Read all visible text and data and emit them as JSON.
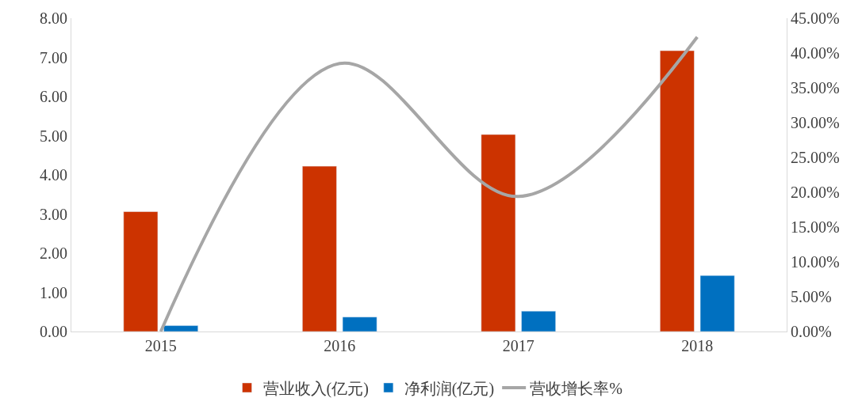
{
  "chart_data": {
    "type": "bar",
    "categories": [
      "2015",
      "2016",
      "2017",
      "2018"
    ],
    "series": [
      {
        "name": "营业收入(亿元)",
        "color": "#cc3300",
        "values": [
          3.06,
          4.22,
          5.03,
          7.17
        ]
      },
      {
        "name": "净利润(亿元)",
        "color": "#0070c0",
        "values": [
          0.15,
          0.37,
          0.52,
          1.43
        ]
      },
      {
        "name": "营收增长率%",
        "color": "#a6a6a6",
        "type": "line",
        "axis": "y2",
        "values": [
          0.0,
          38.5,
          19.4,
          42.3
        ]
      }
    ],
    "ylim": [
      0,
      8
    ],
    "yticks": [
      {
        "value": 0,
        "label": "0.00"
      },
      {
        "value": 1,
        "label": "1.00"
      },
      {
        "value": 2,
        "label": "2.00"
      },
      {
        "value": 3,
        "label": "3.00"
      },
      {
        "value": 4,
        "label": "4.00"
      },
      {
        "value": 5,
        "label": "5.00"
      },
      {
        "value": 6,
        "label": "6.00"
      },
      {
        "value": 7,
        "label": "7.00"
      },
      {
        "value": 8,
        "label": "8.00"
      }
    ],
    "y2lim": [
      0,
      45
    ],
    "y2ticks": [
      {
        "value": 0,
        "label": "0.00%"
      },
      {
        "value": 5,
        "label": "5.00%"
      },
      {
        "value": 10,
        "label": "10.00%"
      },
      {
        "value": 15,
        "label": "15.00%"
      },
      {
        "value": 20,
        "label": "20.00%"
      },
      {
        "value": 25,
        "label": "25.00%"
      },
      {
        "value": 30,
        "label": "30.00%"
      },
      {
        "value": 35,
        "label": "35.00%"
      },
      {
        "value": 40,
        "label": "40.00%"
      },
      {
        "value": 45,
        "label": "45.00%"
      }
    ],
    "legend": "bottom",
    "marker": "none",
    "line_style": "solid"
  }
}
